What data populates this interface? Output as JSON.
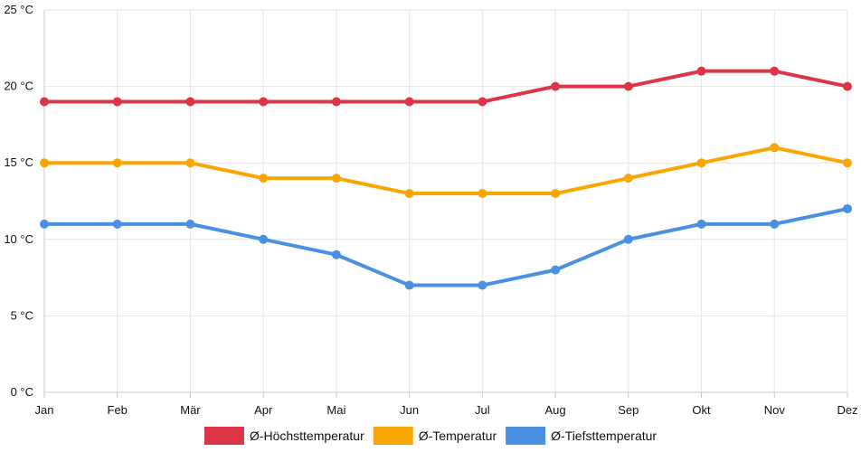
{
  "chart_data": {
    "type": "line",
    "title": "",
    "xlabel": "",
    "ylabel": "",
    "categories": [
      "Jan",
      "Feb",
      "Mär",
      "Apr",
      "Mai",
      "Jun",
      "Jul",
      "Aug",
      "Sep",
      "Okt",
      "Nov",
      "Dez"
    ],
    "ylim": [
      0,
      25
    ],
    "yticks": [
      0,
      5,
      10,
      15,
      20,
      25
    ],
    "ytick_labels": [
      "0 °C",
      "5 °C",
      "10 °C",
      "15 °C",
      "20 °C",
      "25 °C"
    ],
    "grid": true,
    "legend_position": "bottom",
    "series": [
      {
        "name": "Ø-Höchsttemperatur",
        "color": "#dc3545",
        "values": [
          19,
          19,
          19,
          19,
          19,
          19,
          19,
          20,
          20,
          21,
          21,
          20
        ]
      },
      {
        "name": "Ø-Temperatur",
        "color": "#f9a602",
        "values": [
          15,
          15,
          15,
          14,
          14,
          13,
          13,
          13,
          14,
          15,
          16,
          15
        ]
      },
      {
        "name": "Ø-Tiefsttemperatur",
        "color": "#4a90e2",
        "values": [
          11,
          11,
          11,
          10,
          9,
          7,
          7,
          8,
          10,
          11,
          11,
          12
        ]
      }
    ]
  }
}
